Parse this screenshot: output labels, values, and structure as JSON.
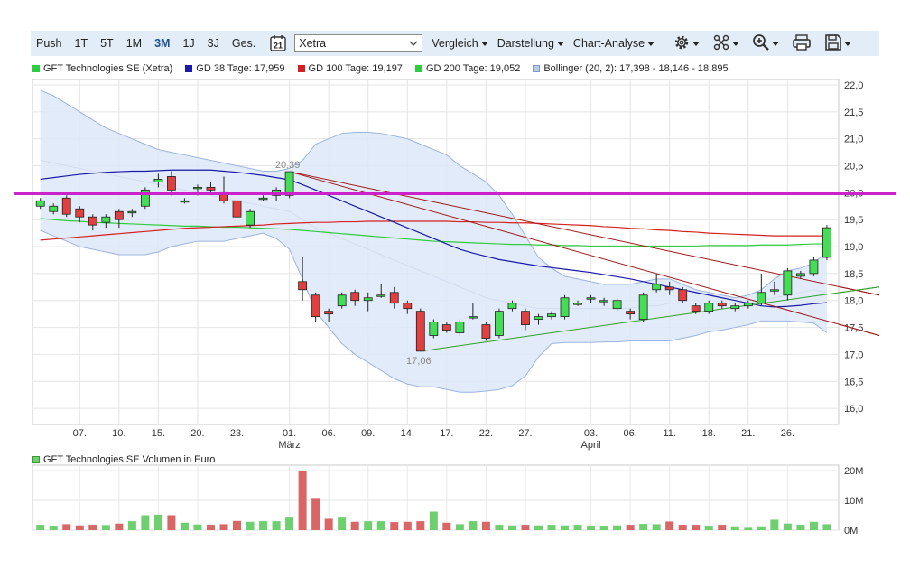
{
  "toolbar": {
    "periods": [
      "Push",
      "1T",
      "5T",
      "1M",
      "3M",
      "1J",
      "3J",
      "Ges."
    ],
    "active_period": "3M",
    "calendar_day": "21",
    "exchange": "Xetra",
    "menus": [
      "Vergleich",
      "Darstellung",
      "Chart-Analyse"
    ],
    "icons": [
      "gear-icon",
      "network-icon",
      "zoom-icon",
      "printer-icon",
      "save-icon"
    ]
  },
  "legend": [
    {
      "label": "GFT Technologies SE (Xetra)",
      "color": "#2ecc40"
    },
    {
      "label": "GD 38 Tage: 17,959",
      "color": "#1a1aa8"
    },
    {
      "label": "GD 100 Tage: 19,197",
      "color": "#d42020"
    },
    {
      "label": "GD 200 Tage: 19,052",
      "color": "#2ecc40"
    },
    {
      "label": "Bollinger (20, 2): 17,398 - 18,146 - 18,895",
      "color": "#b8cbe6"
    }
  ],
  "volume_title": "GFT Technologies SE Volumen in Euro",
  "colors": {
    "up": "#44dd55",
    "down": "#e04040",
    "vol_up": "#6dcf6d",
    "vol_down": "#d86666",
    "band": "#dde8f8",
    "band_line": "#9db4dd",
    "resistance": "#cc22cc",
    "trend": "#a01818"
  },
  "chart_data": {
    "type": "candlestick",
    "price_axis": {
      "min": 15.7,
      "max": 22.1,
      "ticks": [
        "22,0",
        "21,5",
        "21,0",
        "20,5",
        "20,0",
        "19,5",
        "19,0",
        "18,5",
        "18,0",
        "17,5",
        "17,0",
        "16,5",
        "16,0"
      ]
    },
    "x_labels": [
      {
        "i": 3,
        "label": "07."
      },
      {
        "i": 6,
        "label": "10."
      },
      {
        "i": 9,
        "label": "15."
      },
      {
        "i": 12,
        "label": "20."
      },
      {
        "i": 15,
        "label": "23."
      },
      {
        "i": 19,
        "label": "01.",
        "month": "März"
      },
      {
        "i": 22,
        "label": "06."
      },
      {
        "i": 25,
        "label": "09."
      },
      {
        "i": 28,
        "label": "14."
      },
      {
        "i": 31,
        "label": "17."
      },
      {
        "i": 34,
        "label": "22."
      },
      {
        "i": 37,
        "label": "27."
      },
      {
        "i": 42,
        "label": "03.",
        "month": "April"
      },
      {
        "i": 45,
        "label": "06."
      },
      {
        "i": 48,
        "label": "11."
      },
      {
        "i": 51,
        "label": "18."
      },
      {
        "i": 54,
        "label": "21."
      },
      {
        "i": 57,
        "label": "26."
      }
    ],
    "candles": [
      [
        19.75,
        19.85,
        19.7,
        19.9
      ],
      [
        19.65,
        19.75,
        19.6,
        19.8
      ],
      [
        19.9,
        19.6,
        19.55,
        19.95
      ],
      [
        19.7,
        19.55,
        19.45,
        19.75
      ],
      [
        19.55,
        19.4,
        19.3,
        19.6
      ],
      [
        19.45,
        19.55,
        19.35,
        19.6
      ],
      [
        19.65,
        19.5,
        19.35,
        19.7
      ],
      [
        19.65,
        19.65,
        19.55,
        19.7
      ],
      [
        19.75,
        20.05,
        19.7,
        20.1
      ],
      [
        20.2,
        20.25,
        20.1,
        20.35
      ],
      [
        20.3,
        20.05,
        19.95,
        20.4
      ],
      [
        19.85,
        19.85,
        19.8,
        19.9
      ],
      [
        20.1,
        20.1,
        19.95,
        20.15
      ],
      [
        20.1,
        20.05,
        20.0,
        20.2
      ],
      [
        20.0,
        19.85,
        19.8,
        20.3
      ],
      [
        19.85,
        19.55,
        19.45,
        19.9
      ],
      [
        19.4,
        19.65,
        19.35,
        19.7
      ],
      [
        19.9,
        19.9,
        19.85,
        19.95
      ],
      [
        19.95,
        20.05,
        19.85,
        20.1
      ],
      [
        19.95,
        20.39,
        19.9,
        20.39
      ],
      [
        18.35,
        18.2,
        18.0,
        18.8
      ],
      [
        18.1,
        17.7,
        17.6,
        18.15
      ],
      [
        17.8,
        17.75,
        17.6,
        17.85
      ],
      [
        17.9,
        18.1,
        17.85,
        18.15
      ],
      [
        18.15,
        18.0,
        17.9,
        18.2
      ],
      [
        18.0,
        18.05,
        17.8,
        18.15
      ],
      [
        18.1,
        18.1,
        18.05,
        18.3
      ],
      [
        18.15,
        17.95,
        17.85,
        18.25
      ],
      [
        17.95,
        17.85,
        17.75,
        18.0
      ],
      [
        17.8,
        17.06,
        17.06,
        17.85
      ],
      [
        17.35,
        17.6,
        17.3,
        17.65
      ],
      [
        17.55,
        17.45,
        17.4,
        17.6
      ],
      [
        17.4,
        17.6,
        17.35,
        17.65
      ],
      [
        17.7,
        17.7,
        17.65,
        17.95
      ],
      [
        17.55,
        17.3,
        17.25,
        17.6
      ],
      [
        17.35,
        17.8,
        17.3,
        17.85
      ],
      [
        17.85,
        17.95,
        17.8,
        18.0
      ],
      [
        17.8,
        17.55,
        17.45,
        17.85
      ],
      [
        17.65,
        17.7,
        17.55,
        17.75
      ],
      [
        17.7,
        17.75,
        17.65,
        17.8
      ],
      [
        17.7,
        18.05,
        17.65,
        18.1
      ],
      [
        17.95,
        17.95,
        17.9,
        18.0
      ],
      [
        18.05,
        18.05,
        17.95,
        18.1
      ],
      [
        18.0,
        18.0,
        17.9,
        18.05
      ],
      [
        17.85,
        18.0,
        17.8,
        18.05
      ],
      [
        17.8,
        17.75,
        17.65,
        17.85
      ],
      [
        17.65,
        18.1,
        17.6,
        18.15
      ],
      [
        18.2,
        18.3,
        18.15,
        18.5
      ],
      [
        18.25,
        18.2,
        18.1,
        18.35
      ],
      [
        18.2,
        18.0,
        17.95,
        18.25
      ],
      [
        17.9,
        17.8,
        17.75,
        17.95
      ],
      [
        17.8,
        17.95,
        17.75,
        18.0
      ],
      [
        17.95,
        17.9,
        17.85,
        18.0
      ],
      [
        17.85,
        17.9,
        17.8,
        17.95
      ],
      [
        17.9,
        17.95,
        17.85,
        18.0
      ],
      [
        17.95,
        18.15,
        17.9,
        18.5
      ],
      [
        18.2,
        18.2,
        18.1,
        18.35
      ],
      [
        18.1,
        18.55,
        18.0,
        18.6
      ],
      [
        18.45,
        18.5,
        18.4,
        18.55
      ],
      [
        18.5,
        18.75,
        18.45,
        18.8
      ],
      [
        18.8,
        19.35,
        18.75,
        19.4
      ]
    ],
    "bollinger": {
      "upper": [
        21.9,
        21.8,
        21.65,
        21.5,
        21.35,
        21.2,
        21.1,
        21.0,
        20.9,
        20.8,
        20.75,
        20.7,
        20.65,
        20.6,
        20.55,
        20.5,
        20.45,
        20.4,
        20.4,
        20.45,
        20.6,
        20.9,
        21.0,
        21.1,
        21.12,
        21.12,
        21.1,
        21.05,
        21.0,
        20.9,
        20.8,
        20.7,
        20.5,
        20.35,
        20.2,
        19.95,
        19.6,
        19.2,
        18.8,
        18.6,
        18.45,
        18.4,
        18.35,
        18.3,
        18.3,
        18.3,
        18.35,
        18.4,
        18.4,
        18.3,
        18.2,
        18.15,
        18.1,
        18.05,
        18.1,
        18.2,
        18.4,
        18.55,
        18.6,
        18.7,
        18.9
      ],
      "middle": [
        20.6,
        20.55,
        20.5,
        20.45,
        20.4,
        20.35,
        20.3,
        20.25,
        20.2,
        20.15,
        20.1,
        20.05,
        20.0,
        19.95,
        19.9,
        19.85,
        19.8,
        19.75,
        19.7,
        19.65,
        19.5,
        19.35,
        19.25,
        19.15,
        19.05,
        18.95,
        18.85,
        18.75,
        18.65,
        18.55,
        18.45,
        18.35,
        18.25,
        18.15,
        18.05,
        18.0,
        17.95,
        17.9,
        17.85,
        17.85,
        17.85,
        17.85,
        17.85,
        17.85,
        17.85,
        17.85,
        17.9,
        17.9,
        17.95,
        17.95,
        17.95,
        17.95,
        17.95,
        17.95,
        17.95,
        18.0,
        18.05,
        18.1,
        18.15,
        18.2,
        18.15
      ],
      "lower": [
        19.3,
        19.2,
        19.1,
        19.0,
        18.95,
        18.9,
        18.85,
        18.85,
        18.85,
        18.9,
        19.0,
        19.05,
        19.1,
        19.1,
        19.1,
        19.15,
        19.2,
        19.25,
        19.15,
        18.95,
        18.4,
        17.8,
        17.5,
        17.2,
        17.0,
        16.85,
        16.7,
        16.55,
        16.45,
        16.4,
        16.4,
        16.35,
        16.3,
        16.3,
        16.32,
        16.35,
        16.42,
        16.6,
        16.95,
        17.2,
        17.22,
        17.22,
        17.22,
        17.23,
        17.23,
        17.25,
        17.25,
        17.25,
        17.25,
        17.3,
        17.35,
        17.42,
        17.45,
        17.5,
        17.55,
        17.62,
        17.62,
        17.62,
        17.6,
        17.58,
        17.4
      ]
    },
    "gd38": [
      20.25,
      20.28,
      20.31,
      20.34,
      20.36,
      20.38,
      20.39,
      20.4,
      20.4,
      20.41,
      20.42,
      20.42,
      20.42,
      20.42,
      20.4,
      20.38,
      20.35,
      20.32,
      20.28,
      20.24,
      20.15,
      20.05,
      19.95,
      19.85,
      19.75,
      19.65,
      19.55,
      19.45,
      19.35,
      19.25,
      19.15,
      19.05,
      18.95,
      18.88,
      18.82,
      18.76,
      18.72,
      18.68,
      18.64,
      18.61,
      18.58,
      18.55,
      18.52,
      18.48,
      18.44,
      18.4,
      18.35,
      18.3,
      18.25,
      18.2,
      18.15,
      18.1,
      18.05,
      18.0,
      17.95,
      17.9,
      17.88,
      17.89,
      17.91,
      17.94,
      17.96
    ],
    "gd100": [
      19.12,
      19.14,
      19.16,
      19.18,
      19.2,
      19.22,
      19.24,
      19.26,
      19.28,
      19.3,
      19.32,
      19.34,
      19.35,
      19.36,
      19.37,
      19.38,
      19.39,
      19.4,
      19.42,
      19.43,
      19.44,
      19.45,
      19.45,
      19.46,
      19.46,
      19.47,
      19.47,
      19.47,
      19.47,
      19.47,
      19.47,
      19.47,
      19.46,
      19.46,
      19.45,
      19.45,
      19.44,
      19.44,
      19.43,
      19.42,
      19.41,
      19.4,
      19.39,
      19.37,
      19.36,
      19.34,
      19.33,
      19.31,
      19.3,
      19.28,
      19.27,
      19.25,
      19.24,
      19.23,
      19.22,
      19.21,
      19.2,
      19.2,
      19.2,
      19.2,
      19.2
    ],
    "gd200": [
      19.52,
      19.5,
      19.48,
      19.47,
      19.45,
      19.44,
      19.43,
      19.42,
      19.41,
      19.4,
      19.39,
      19.38,
      19.38,
      19.37,
      19.36,
      19.36,
      19.35,
      19.34,
      19.33,
      19.32,
      19.3,
      19.28,
      19.26,
      19.24,
      19.22,
      19.2,
      19.18,
      19.16,
      19.14,
      19.12,
      19.1,
      19.09,
      19.08,
      19.07,
      19.06,
      19.05,
      19.04,
      19.04,
      19.03,
      19.03,
      19.02,
      19.02,
      19.01,
      19.01,
      19.01,
      19.01,
      19.01,
      19.01,
      19.01,
      19.01,
      19.01,
      19.02,
      19.02,
      19.02,
      19.02,
      19.03,
      19.03,
      19.03,
      19.04,
      19.05,
      19.05
    ],
    "resistance_level": 19.98,
    "trendlines": [
      {
        "from": [
          19,
          20.39
        ],
        "to": [
          64,
          18.1
        ]
      },
      {
        "from": [
          19,
          20.39
        ],
        "to": [
          64,
          17.35
        ]
      },
      {
        "from": [
          29,
          17.06
        ],
        "to": [
          64,
          18.25
        ],
        "color": "green"
      }
    ],
    "annotations": [
      {
        "i": 19,
        "value": 20.39,
        "label": "20,39"
      },
      {
        "i": 29,
        "value": 17.06,
        "label": "17,06"
      }
    ],
    "volume_axis": {
      "max": 20,
      "ticks": [
        {
          "v": 20,
          "label": "20M"
        },
        {
          "v": 10,
          "label": "10M"
        },
        {
          "v": 0,
          "label": "0M"
        }
      ]
    },
    "volume": [
      1.8,
      1.5,
      2.0,
      1.6,
      1.8,
      1.7,
      2.2,
      3.0,
      5.0,
      5.2,
      5.0,
      2.5,
      1.9,
      1.8,
      2.0,
      3.1,
      2.8,
      3.0,
      3.0,
      4.5,
      19.8,
      10.8,
      3.8,
      4.5,
      2.8,
      3.0,
      3.0,
      2.7,
      2.8,
      3.0,
      6.2,
      2.5,
      2.0,
      3.0,
      2.8,
      1.8,
      1.6,
      1.8,
      1.6,
      1.8,
      1.6,
      1.8,
      1.5,
      1.5,
      1.6,
      1.8,
      2.1,
      2.0,
      2.9,
      1.8,
      1.8,
      1.5,
      1.8,
      1.3,
      0.8,
      1.3,
      3.5,
      2.2,
      1.8,
      2.8,
      2.0
    ]
  }
}
